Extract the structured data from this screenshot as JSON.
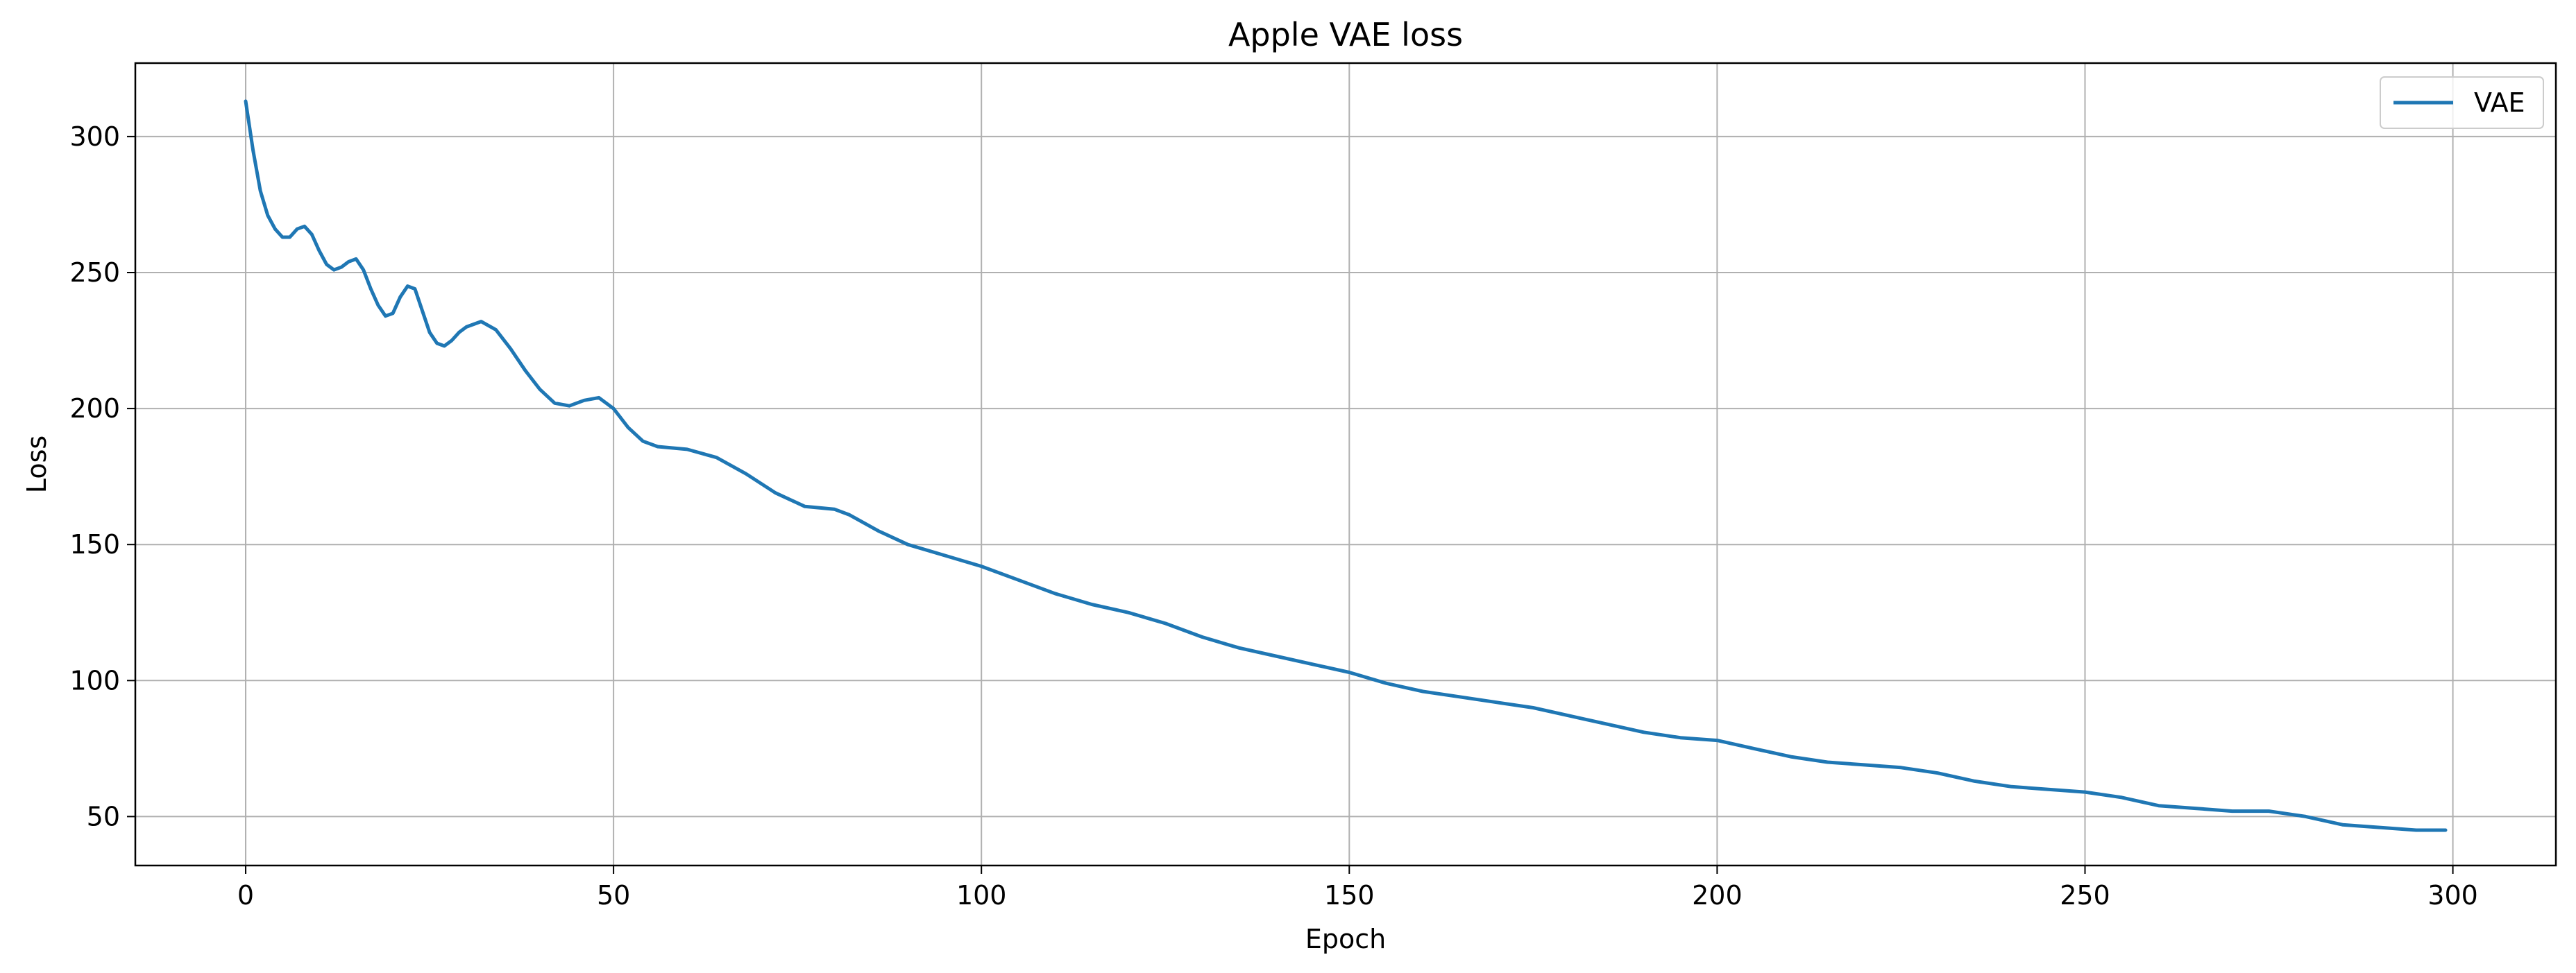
{
  "chart_data": {
    "type": "line",
    "title": "Apple VAE loss",
    "xlabel": "Epoch",
    "ylabel": "Loss",
    "xlim": [
      -15,
      314
    ],
    "ylim": [
      32,
      327
    ],
    "xticks": [
      0,
      50,
      100,
      150,
      200,
      250,
      300
    ],
    "yticks": [
      50,
      100,
      150,
      200,
      250,
      300
    ],
    "grid": true,
    "legend_position": "top-right",
    "series": [
      {
        "name": "VAE",
        "color": "#1f77b4",
        "x": [
          0,
          1,
          2,
          3,
          4,
          5,
          6,
          7,
          8,
          9,
          10,
          11,
          12,
          13,
          14,
          15,
          16,
          17,
          18,
          19,
          20,
          21,
          22,
          23,
          24,
          25,
          26,
          27,
          28,
          29,
          30,
          32,
          34,
          36,
          38,
          40,
          42,
          44,
          46,
          48,
          50,
          52,
          54,
          56,
          60,
          64,
          68,
          72,
          76,
          80,
          82,
          84,
          86,
          90,
          95,
          100,
          105,
          110,
          115,
          120,
          125,
          130,
          135,
          140,
          145,
          150,
          155,
          160,
          165,
          170,
          175,
          180,
          185,
          190,
          195,
          200,
          205,
          210,
          215,
          220,
          225,
          230,
          235,
          240,
          245,
          250,
          255,
          260,
          265,
          270,
          275,
          280,
          285,
          290,
          295,
          299
        ],
        "y": [
          313,
          295,
          280,
          271,
          266,
          263,
          263,
          266,
          267,
          264,
          258,
          253,
          251,
          252,
          254,
          255,
          251,
          244,
          238,
          234,
          235,
          241,
          245,
          244,
          236,
          228,
          224,
          223,
          225,
          228,
          230,
          232,
          229,
          222,
          214,
          207,
          202,
          201,
          203,
          204,
          200,
          193,
          188,
          186,
          185,
          182,
          176,
          169,
          164,
          163,
          161,
          158,
          155,
          150,
          146,
          142,
          137,
          132,
          128,
          125,
          121,
          116,
          112,
          109,
          106,
          103,
          99,
          96,
          94,
          92,
          90,
          87,
          84,
          81,
          79,
          78,
          75,
          72,
          70,
          69,
          68,
          66,
          63,
          61,
          60,
          59,
          57,
          54,
          53,
          52,
          52,
          50,
          47,
          46,
          45,
          45
        ]
      }
    ]
  }
}
